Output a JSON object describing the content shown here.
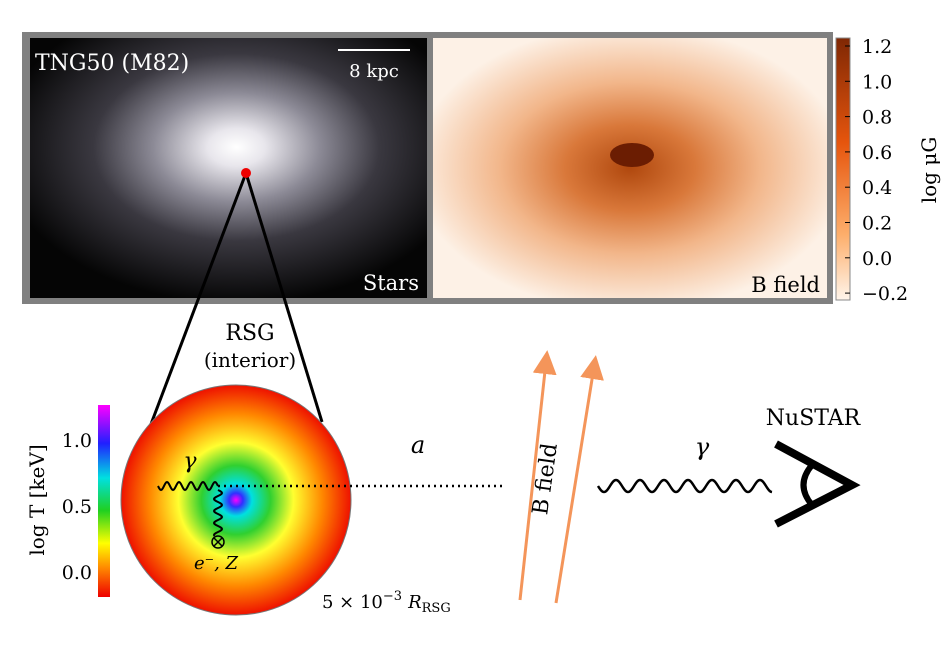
{
  "top_panel": {
    "left_label": "TNG50 (M82)",
    "scale_bar": "8 kpc",
    "stars_label": "Stars",
    "b_field_label": "B field",
    "colorbar": {
      "label": "log μG",
      "ticks": [
        "1.2",
        "1.0",
        "0.8",
        "0.6",
        "0.4",
        "0.2",
        "0.0",
        "−0.2"
      ]
    }
  },
  "rsg": {
    "title": "RSG",
    "subtitle": "(interior)",
    "photon": "γ",
    "scatterers": "e⁻, Z",
    "scale": {
      "base": "5 × 10",
      "exponent": "−3",
      "symbol": "R",
      "subscript": "RSG"
    },
    "colorbar": {
      "label": "log T [keV]",
      "ticks": [
        "1.0",
        "0.5",
        "0.0"
      ]
    }
  },
  "propagation": {
    "axion": "a",
    "field": "B field",
    "photon": "γ",
    "detector": "NuSTAR"
  }
}
